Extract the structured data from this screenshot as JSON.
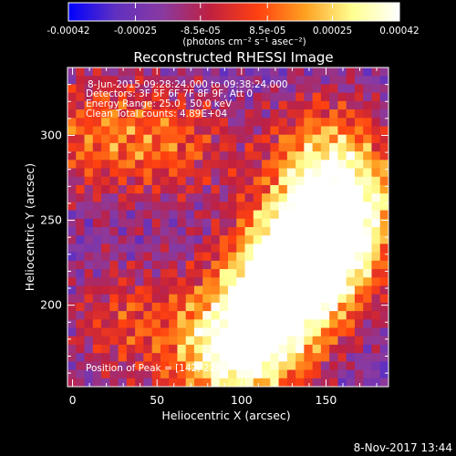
{
  "chart_data": [
    {
      "type": "colorbar",
      "ticks": [
        "-0.00042",
        "-0.00025",
        "-8.5e-05",
        "8.5e-05",
        "0.00025",
        "0.00042"
      ],
      "tick_values": [
        -0.00042,
        -0.00025,
        -8.5e-05,
        8.5e-05,
        0.00025,
        0.00042
      ],
      "range": [
        -0.00042,
        0.00042
      ],
      "unit_label": "(photons cm⁻² s⁻¹ asec⁻²)",
      "colors": [
        "#0000ff",
        "#6030c0",
        "#8a3aa0",
        "#c02040",
        "#ff4010",
        "#ffa020",
        "#ffff90",
        "#ffffff"
      ]
    },
    {
      "type": "heatmap",
      "title": "Reconstructed RHESSI Image",
      "xlabel": "Heliocentric X (arcsec)",
      "ylabel": "Heliocentric Y (arcsec)",
      "xlim": [
        -3,
        187
      ],
      "ylim": [
        152,
        340
      ],
      "x_ticks": [
        "0",
        "50",
        "100",
        "150"
      ],
      "x_tick_values": [
        0,
        50,
        100,
        150
      ],
      "y_ticks": [
        "200",
        "250",
        "300"
      ],
      "y_tick_values": [
        200,
        250,
        300
      ],
      "annotations": [
        "8-Jun-2015 09:28:24.000 to 09:38:24.000",
        "Detectors: 3F 5F 6F 7F 8F 9F, Att 0",
        "Energy Range: 25.0 - 50.0 keV",
        "Clean     Total counts: 4.89E+04",
        "Position of Peak = [142, 228]"
      ],
      "peak": [
        142,
        228
      ],
      "bright_regions": [
        {
          "x": 142,
          "y": 228,
          "level": 1.0
        },
        {
          "x": 160,
          "y": 255,
          "level": 0.9
        },
        {
          "x": 125,
          "y": 212,
          "level": 0.85
        },
        {
          "x": 90,
          "y": 168,
          "level": 0.75
        },
        {
          "x": 110,
          "y": 178,
          "level": 0.7
        },
        {
          "x": 150,
          "y": 290,
          "level": 0.65
        },
        {
          "x": 10,
          "y": 300,
          "level": 0.55
        },
        {
          "x": 30,
          "y": 190,
          "level": 0.45
        },
        {
          "x": 60,
          "y": 295,
          "level": 0.5
        }
      ]
    }
  ],
  "footer": {
    "timestamp": "8-Nov-2017 13:44"
  }
}
